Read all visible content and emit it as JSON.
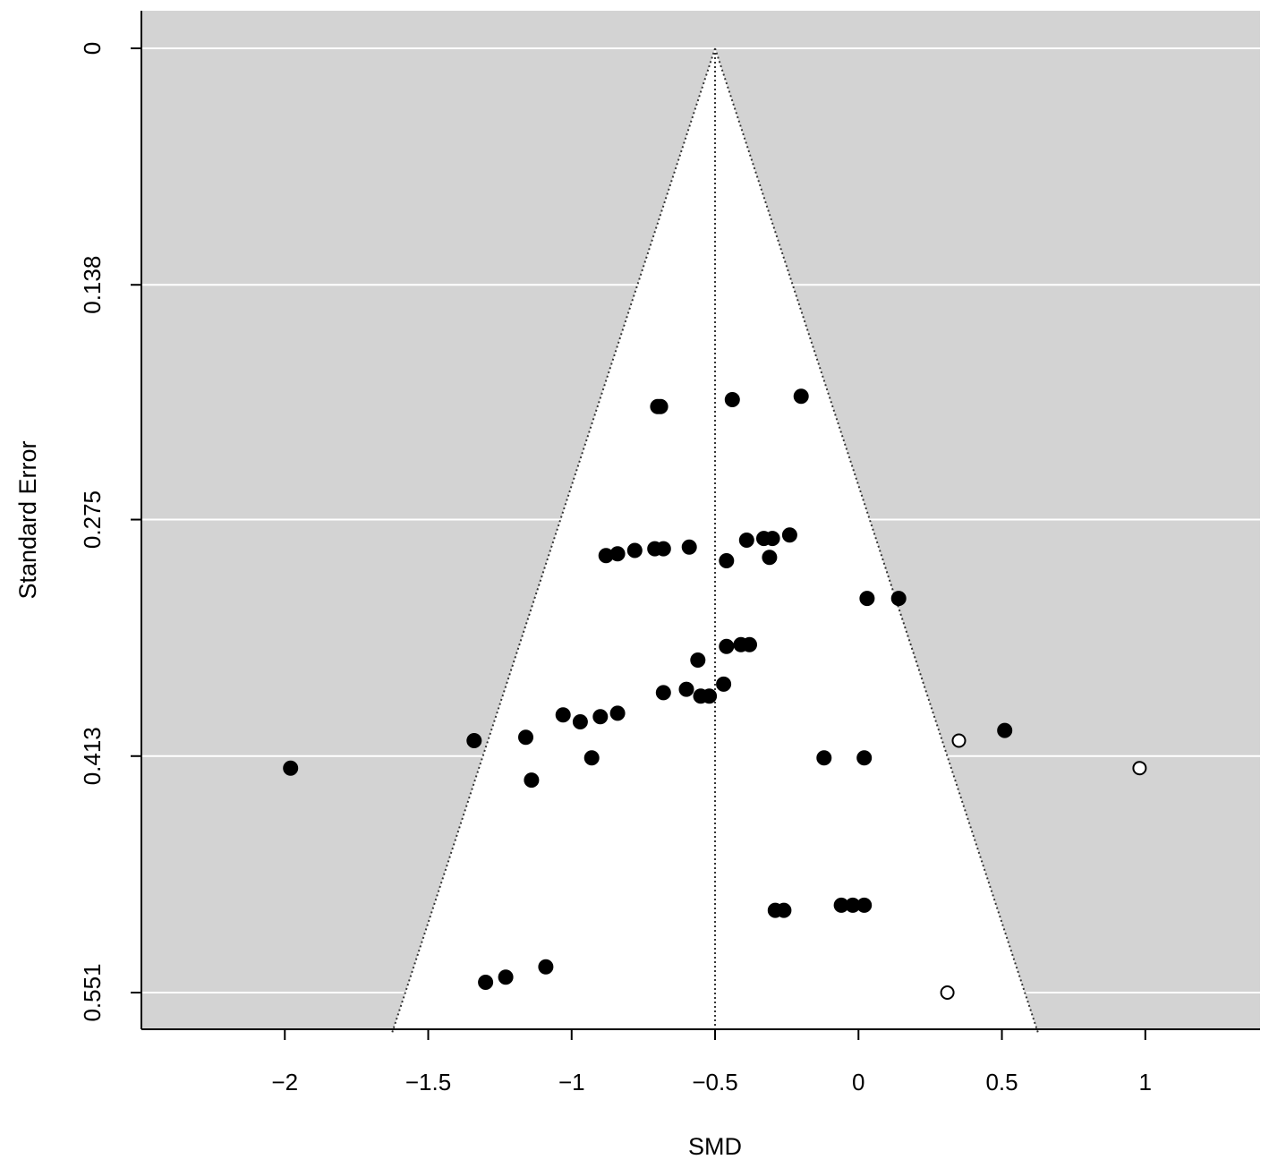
{
  "chart_data": {
    "type": "scatter",
    "subtype": "funnel",
    "title": "",
    "xlabel": "SMD",
    "ylabel": "Standard Error",
    "xlim": [
      -2.5,
      1.4
    ],
    "ylim": [
      0.551,
      0
    ],
    "y_reversed": true,
    "x_ticks": [
      -2,
      -1.5,
      -1,
      -0.5,
      0,
      0.5,
      1
    ],
    "x_tick_labels": [
      "−2",
      "−1.5",
      "−1",
      "−0.5",
      "0",
      "0.5",
      "1"
    ],
    "y_ticks": [
      0,
      0.138,
      0.275,
      0.413,
      0.551
    ],
    "y_tick_labels": [
      "0",
      "0.138",
      "0.275",
      "0.413",
      "0.551"
    ],
    "summary_estimate": -0.5,
    "funnel_bottom_se": 0.575,
    "grid": true,
    "colors": {
      "panel_background": "#d3d3d3",
      "funnel_fill": "#ffffff",
      "gridline": "#ffffff",
      "observed_point": "#000000",
      "imputed_point": "#ffffff"
    },
    "series": [
      {
        "marker": "filled",
        "points": [
          {
            "x": -0.7,
            "y": 0.209
          },
          {
            "x": -0.69,
            "y": 0.209
          },
          {
            "x": -0.44,
            "y": 0.205
          },
          {
            "x": -0.2,
            "y": 0.203
          },
          {
            "x": -0.88,
            "y": 0.296
          },
          {
            "x": -0.84,
            "y": 0.295
          },
          {
            "x": -0.78,
            "y": 0.293
          },
          {
            "x": -0.71,
            "y": 0.292
          },
          {
            "x": -0.68,
            "y": 0.292
          },
          {
            "x": -0.59,
            "y": 0.291
          },
          {
            "x": -0.46,
            "y": 0.299
          },
          {
            "x": -0.39,
            "y": 0.287
          },
          {
            "x": -0.33,
            "y": 0.286
          },
          {
            "x": -0.3,
            "y": 0.286
          },
          {
            "x": -0.31,
            "y": 0.297
          },
          {
            "x": -0.24,
            "y": 0.284
          },
          {
            "x": 0.03,
            "y": 0.321
          },
          {
            "x": 0.14,
            "y": 0.321
          },
          {
            "x": -0.46,
            "y": 0.349
          },
          {
            "x": -0.41,
            "y": 0.348
          },
          {
            "x": -0.38,
            "y": 0.348
          },
          {
            "x": -0.56,
            "y": 0.357
          },
          {
            "x": -0.68,
            "y": 0.376
          },
          {
            "x": -0.6,
            "y": 0.374
          },
          {
            "x": -0.55,
            "y": 0.378
          },
          {
            "x": -0.52,
            "y": 0.378
          },
          {
            "x": -0.47,
            "y": 0.371
          },
          {
            "x": -1.03,
            "y": 0.389
          },
          {
            "x": -0.97,
            "y": 0.393
          },
          {
            "x": -0.9,
            "y": 0.39
          },
          {
            "x": -0.84,
            "y": 0.388
          },
          {
            "x": -1.34,
            "y": 0.404
          },
          {
            "x": -1.16,
            "y": 0.402
          },
          {
            "x": 0.51,
            "y": 0.398
          },
          {
            "x": -1.98,
            "y": 0.42
          },
          {
            "x": -1.14,
            "y": 0.427
          },
          {
            "x": -0.93,
            "y": 0.414
          },
          {
            "x": -0.12,
            "y": 0.414
          },
          {
            "x": 0.02,
            "y": 0.414
          },
          {
            "x": -0.29,
            "y": 0.503
          },
          {
            "x": -0.26,
            "y": 0.503
          },
          {
            "x": -0.06,
            "y": 0.5
          },
          {
            "x": -0.02,
            "y": 0.5
          },
          {
            "x": 0.02,
            "y": 0.5
          },
          {
            "x": -1.3,
            "y": 0.545
          },
          {
            "x": -1.23,
            "y": 0.542
          },
          {
            "x": -1.09,
            "y": 0.536
          }
        ]
      },
      {
        "marker": "open",
        "points": [
          {
            "x": 0.35,
            "y": 0.404
          },
          {
            "x": 0.98,
            "y": 0.42
          },
          {
            "x": 0.31,
            "y": 0.551
          }
        ]
      }
    ]
  }
}
